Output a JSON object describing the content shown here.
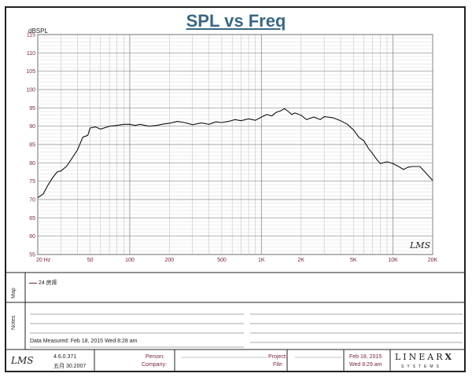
{
  "chart_data": {
    "type": "line",
    "title": "SPL vs Freq",
    "ylabel": "dBSPL",
    "xscale": "log",
    "xlim": [
      20,
      20000
    ],
    "ylim": [
      55,
      115
    ],
    "x_tick_labels": [
      "20 Hz",
      "50",
      "100",
      "200",
      "500",
      "1K",
      "2K",
      "5K",
      "10K",
      "20K"
    ],
    "x_tick_values": [
      20,
      50,
      100,
      200,
      500,
      1000,
      2000,
      5000,
      10000,
      20000
    ],
    "y_tick_values": [
      55,
      60,
      65,
      70,
      75,
      80,
      85,
      90,
      95,
      100,
      105,
      110,
      115
    ],
    "grid": true,
    "series": [
      {
        "name": "24 房摔",
        "color": "#111111",
        "x": [
          20,
          22,
          24,
          26,
          28,
          30,
          33,
          36,
          40,
          44,
          48,
          50,
          55,
          60,
          70,
          80,
          90,
          100,
          110,
          120,
          140,
          160,
          180,
          200,
          230,
          260,
          300,
          350,
          400,
          450,
          500,
          560,
          630,
          700,
          800,
          900,
          1000,
          1100,
          1200,
          1300,
          1400,
          1500,
          1600,
          1700,
          1800,
          2000,
          2200,
          2500,
          2800,
          3000,
          3500,
          4000,
          4500,
          5000,
          5500,
          6000,
          6500,
          7000,
          7500,
          8000,
          9000,
          10000,
          11000,
          12000,
          13000,
          14000,
          16000,
          18000,
          20000
        ],
        "y": [
          70.5,
          71.5,
          74,
          76,
          77.5,
          77.8,
          79,
          81,
          83.5,
          87,
          87.5,
          89.5,
          89.8,
          89.2,
          90,
          90.2,
          90.5,
          90.5,
          90.2,
          90.5,
          90.0,
          90.2,
          90.6,
          90.8,
          91.3,
          91.0,
          90.4,
          90.9,
          90.5,
          91.2,
          91.0,
          91.3,
          91.8,
          91.5,
          92.0,
          91.6,
          92.5,
          93.2,
          92.8,
          93.8,
          94.2,
          94.8,
          94.0,
          93.2,
          93.6,
          93.0,
          91.8,
          92.5,
          91.8,
          92.6,
          92.3,
          91.5,
          90.5,
          89.0,
          87.0,
          86.0,
          84.0,
          82.5,
          81.0,
          79.8,
          80.3,
          79.8,
          79.0,
          78.2,
          78.8,
          79.0,
          79.0,
          77.0,
          75.2
        ]
      }
    ]
  },
  "page": {
    "title": "SPL vs Freq",
    "watermark": "LMS"
  },
  "map": {
    "label": "Map",
    "legend_entry": "24 房摔"
  },
  "notes": {
    "label": "Notes",
    "date_measured": "Data Measured: Feb 18, 2015  Wed  8:28 am"
  },
  "footer": {
    "logo": "LMS",
    "version": "4.6.0.371",
    "build_date": "五月 30.2007",
    "person_label": "Person:",
    "company_label": "Company:",
    "project_label": "Project:",
    "file_label": "File:",
    "date": "Feb 18, 2015",
    "time": "Wed  8:29 am",
    "brand": "LINEAR",
    "brand_x": "X",
    "brand_sub": "SYSTEMS"
  }
}
